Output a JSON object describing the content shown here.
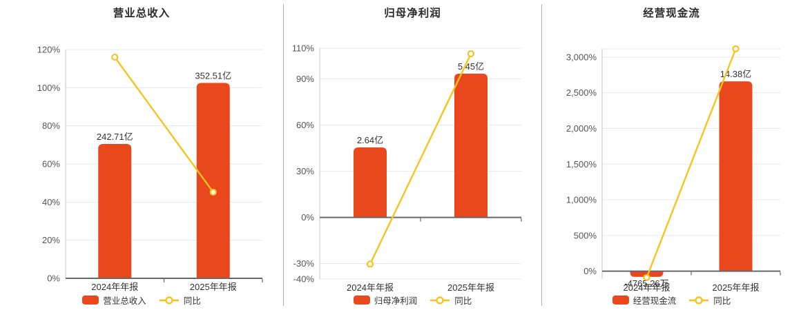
{
  "colors": {
    "bar": "#e8481c",
    "line": "#f6c51d",
    "grid": "#e4e8f2",
    "zero_axis": "#66666e",
    "y_axis_line": "#c4c6cc",
    "tick_label": "#555555",
    "category_label": "#333333",
    "value_label": "#333333",
    "title": "#2b2b2b",
    "divider": "#b0b0aa",
    "background": "#ffffff"
  },
  "chart_data": [
    {
      "type": "bar+line",
      "id": "revenue",
      "title": "营业总收入",
      "categories": [
        "2024年年报",
        "2025年年报"
      ],
      "bar_series": {
        "name": "营业总收入",
        "display_values": [
          "242.71亿",
          "352.51亿"
        ],
        "pct_axis_heights": [
          70.5,
          102.5
        ]
      },
      "line_series": {
        "name": "同比",
        "values_pct": [
          116,
          45.2
        ]
      },
      "y_axis": {
        "range": [
          0,
          120
        ],
        "ticks": [
          {
            "value": 0,
            "label": "0%"
          },
          {
            "value": 20,
            "label": "20%"
          },
          {
            "value": 40,
            "label": "40%"
          },
          {
            "value": 60,
            "label": "60%"
          },
          {
            "value": 80,
            "label": "80%"
          },
          {
            "value": 100,
            "label": "100%"
          },
          {
            "value": 120,
            "label": "120%"
          }
        ]
      },
      "legend": {
        "bar_label": "营业总收入",
        "line_label": "同比",
        "position": "bottom"
      },
      "grid": true
    },
    {
      "type": "bar+line",
      "id": "net-profit",
      "title": "归母净利润",
      "categories": [
        "2024年年报",
        "2025年年报"
      ],
      "bar_series": {
        "name": "归母净利润",
        "display_values": [
          "2.64亿",
          "5.45亿"
        ],
        "pct_axis_heights": [
          45.5,
          93.5
        ]
      },
      "line_series": {
        "name": "同比",
        "values_pct": [
          -30.3,
          106.4
        ]
      },
      "y_axis": {
        "range": [
          -40,
          110
        ],
        "ticks": [
          {
            "value": -40,
            "label": "-40%"
          },
          {
            "value": -30,
            "label": "-30%"
          },
          {
            "value": 0,
            "label": "0%"
          },
          {
            "value": 30,
            "label": "30%"
          },
          {
            "value": 60,
            "label": "60%"
          },
          {
            "value": 90,
            "label": "90%"
          },
          {
            "value": 110,
            "label": "110%"
          }
        ]
      },
      "legend": {
        "bar_label": "归母净利润",
        "line_label": "同比",
        "position": "bottom"
      },
      "grid": true
    },
    {
      "type": "bar+line",
      "id": "operating-cash-flow",
      "title": "经营现金流",
      "categories": [
        "2024年年报",
        "2025年年报"
      ],
      "bar_series": {
        "name": "经营现金流",
        "display_values": [
          "-4765.26万",
          "14.38亿"
        ],
        "pct_axis_heights": [
          -80,
          2660
        ]
      },
      "line_series": {
        "name": "同比",
        "values_pct": [
          -90,
          3117
        ]
      },
      "y_axis": {
        "range": [
          -110,
          3115
        ],
        "ticks": [
          {
            "value": 0,
            "label": "0%"
          },
          {
            "value": 500,
            "label": "500%"
          },
          {
            "value": 1000,
            "label": "1,000%"
          },
          {
            "value": 1500,
            "label": "1,500%"
          },
          {
            "value": 2000,
            "label": "2,000%"
          },
          {
            "value": 2500,
            "label": "2,500%"
          },
          {
            "value": 3000,
            "label": "3,000%"
          }
        ]
      },
      "legend": {
        "bar_label": "经营现金流",
        "line_label": "同比",
        "position": "bottom"
      },
      "grid": true
    }
  ]
}
